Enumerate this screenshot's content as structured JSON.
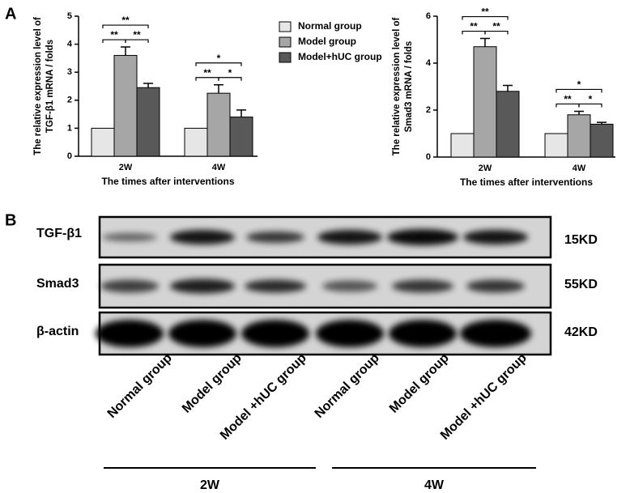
{
  "chart_data": [
    {
      "type": "bar",
      "panel": "A",
      "ylabel": [
        "The relative expression level of",
        "TGF-β1 mRNA / folds"
      ],
      "xlabel": "The times after interventions",
      "categories": [
        "2W",
        "4W"
      ],
      "ylim": [
        0,
        5
      ],
      "yticks": [
        0,
        1,
        2,
        3,
        4,
        5
      ],
      "series": [
        {
          "name": "Normal group",
          "color": "#e6e6e6",
          "values": [
            1,
            1
          ],
          "errors": [
            0,
            0
          ]
        },
        {
          "name": "Model group",
          "color": "#a6a6a6",
          "values": [
            3.6,
            2.25
          ],
          "errors": [
            0.3,
            0.3
          ]
        },
        {
          "name": "Model+hUC group",
          "color": "#595959",
          "values": [
            2.45,
            1.4
          ],
          "errors": [
            0.15,
            0.25
          ]
        }
      ],
      "annotations": [
        "**",
        "**",
        "**",
        "*",
        "**",
        "*"
      ]
    },
    {
      "type": "bar",
      "ylabel": [
        "The relative expression level of",
        "Smad3 mRNA / folds"
      ],
      "xlabel": "The times after interventions",
      "categories": [
        "2W",
        "4W"
      ],
      "ylim": [
        0,
        6
      ],
      "yticks": [
        0,
        2,
        4,
        6
      ],
      "series": [
        {
          "color": "#e6e6e6",
          "values": [
            1,
            1
          ],
          "errors": [
            0,
            0
          ]
        },
        {
          "color": "#a6a6a6",
          "values": [
            4.7,
            1.8
          ],
          "errors": [
            0.35,
            0.15
          ]
        },
        {
          "color": "#595959",
          "values": [
            2.8,
            1.4
          ],
          "errors": [
            0.25,
            0.08
          ]
        }
      ],
      "annotations": [
        "**",
        "**",
        "**",
        "*",
        "**",
        "*"
      ]
    }
  ],
  "blot": {
    "panel": "B",
    "rows": [
      {
        "label": "TGF-β1",
        "size": "15KD"
      },
      {
        "label": "Smad3",
        "size": "55KD"
      },
      {
        "label": "β-actin",
        "size": "42KD"
      }
    ],
    "lanes": [
      "Normal group",
      "Model group",
      "Model +hUC group",
      "Normal group",
      "Model group",
      "Model +hUC group"
    ],
    "groups": [
      "2W",
      "4W"
    ]
  }
}
